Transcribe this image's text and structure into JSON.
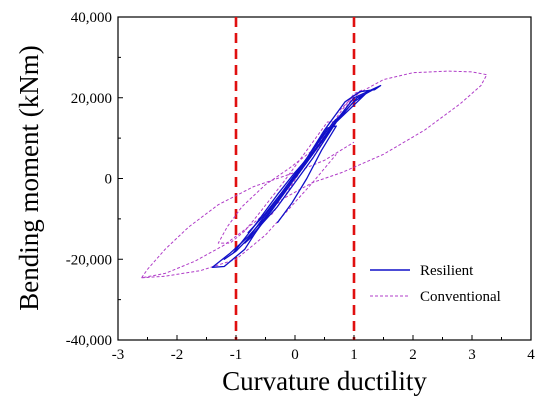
{
  "chart_data": {
    "type": "line",
    "title": "",
    "xlabel": "Curvature ductility",
    "ylabel": "Bending moment (kNm)",
    "xlim": [
      -3,
      4
    ],
    "ylim": [
      -40000,
      40000
    ],
    "x_ticks": [
      -3,
      -2,
      -1,
      0,
      1,
      2,
      3,
      4
    ],
    "x_tick_labels": [
      "-3",
      "-2",
      "-1",
      "0",
      "1",
      "2",
      "3",
      "4"
    ],
    "y_ticks": [
      -40000,
      -20000,
      0,
      20000,
      40000
    ],
    "y_tick_labels": [
      "-40,000",
      "-20,000",
      "0",
      "20,000",
      "40,000"
    ],
    "grid": false,
    "legend_position": "lower-right",
    "colors": {
      "resilient": "#1010c8",
      "conventional": "#b03cc8",
      "reference": "#e01010"
    },
    "reference_lines": [
      {
        "axis": "x",
        "value": -1,
        "style": "dashed"
      },
      {
        "axis": "x",
        "value": 1,
        "style": "dashed"
      }
    ],
    "series": [
      {
        "name": "Resilient",
        "style": "solid",
        "loops": [
          [
            [
              0,
              0
            ],
            [
              0.3,
              6000
            ],
            [
              0.6,
              12000
            ],
            [
              0.8,
              16000
            ],
            [
              0.65,
              14000
            ],
            [
              0.3,
              7000
            ],
            [
              0,
              1000
            ],
            [
              -0.3,
              -5000
            ],
            [
              -0.6,
              -11000
            ],
            [
              -0.85,
              -16000
            ],
            [
              -0.7,
              -14000
            ],
            [
              -0.4,
              -8000
            ],
            [
              -0.1,
              -2000
            ],
            [
              0.2,
              4500
            ],
            [
              0.5,
              10000
            ],
            [
              0.8,
              16000
            ]
          ],
          [
            [
              0.8,
              16000
            ],
            [
              1.0,
              19000
            ],
            [
              1.2,
              21000
            ],
            [
              1.05,
              20000
            ],
            [
              0.7,
              14000
            ],
            [
              0.3,
              5000
            ],
            [
              0,
              -1000
            ],
            [
              -0.3,
              -7000
            ],
            [
              -0.7,
              -13500
            ],
            [
              -1.0,
              -18000
            ],
            [
              -1.2,
              -20000
            ],
            [
              -1.05,
              -18500
            ],
            [
              -0.7,
              -12000
            ],
            [
              -0.3,
              -4000
            ],
            [
              0,
              1500
            ],
            [
              0.3,
              6500
            ],
            [
              0.7,
              14000
            ],
            [
              1.2,
              21000
            ]
          ],
          [
            [
              1.2,
              21000
            ],
            [
              1.45,
              23000
            ],
            [
              1.35,
              22000
            ],
            [
              1.1,
              21500
            ],
            [
              0.85,
              19000
            ],
            [
              0.5,
              12000
            ],
            [
              0.2,
              5000
            ],
            [
              -0.1,
              -1500
            ],
            [
              -0.4,
              -8000
            ],
            [
              -0.8,
              -14500
            ],
            [
              -1.1,
              -18500
            ],
            [
              -1.4,
              -22000
            ],
            [
              -1.2,
              -21800
            ],
            [
              -0.85,
              -17500
            ],
            [
              -0.5,
              -9500
            ],
            [
              -0.15,
              -2500
            ],
            [
              0.2,
              4000
            ],
            [
              0.6,
              12500
            ],
            [
              1.0,
              20000
            ],
            [
              1.45,
              23000
            ]
          ],
          [
            [
              -0.3,
              -11000
            ],
            [
              -0.05,
              -6000
            ],
            [
              0.2,
              0
            ],
            [
              0.45,
              7000
            ],
            [
              0.7,
              13000
            ],
            [
              0.55,
              12500
            ],
            [
              0.2,
              5000
            ],
            [
              -0.2,
              -3000
            ],
            [
              -0.55,
              -9500
            ],
            [
              -0.8,
              -13500
            ]
          ]
        ]
      },
      {
        "name": "Conventional",
        "style": "dashed",
        "loops": [
          [
            [
              -0.4,
              -9000
            ],
            [
              -0.2,
              -5000
            ],
            [
              0.1,
              2000
            ],
            [
              0.4,
              8000
            ],
            [
              0.7,
              14000
            ],
            [
              0.55,
              14000
            ],
            [
              0.15,
              6000
            ],
            [
              -0.2,
              -1000
            ],
            [
              -0.6,
              -8500
            ],
            [
              -0.85,
              -13000
            ]
          ],
          [
            [
              -0.85,
              -13000
            ],
            [
              -1.1,
              -16000
            ],
            [
              -1.3,
              -16000
            ],
            [
              -1.15,
              -12000
            ],
            [
              -0.9,
              -7000
            ],
            [
              -0.5,
              -1500
            ],
            [
              -0.1,
              2500
            ],
            [
              0.3,
              7000
            ],
            [
              0.7,
              14000
            ],
            [
              0.95,
              19500
            ],
            [
              1.15,
              22000
            ],
            [
              1.0,
              21000
            ],
            [
              0.7,
              15000
            ],
            [
              0.3,
              5000
            ]
          ],
          [
            [
              0.7,
              16000
            ],
            [
              1.0,
              20500
            ],
            [
              1.5,
              24500
            ],
            [
              2.0,
              26200
            ],
            [
              2.6,
              26600
            ],
            [
              3.0,
              26400
            ],
            [
              3.25,
              25700
            ],
            [
              3.15,
              23000
            ],
            [
              2.8,
              18500
            ],
            [
              2.2,
              12000
            ],
            [
              1.5,
              6000
            ],
            [
              0.8,
              1500
            ],
            [
              0.3,
              -1000
            ],
            [
              -0.2,
              -5000
            ],
            [
              -0.7,
              -11000
            ],
            [
              -1.2,
              -16500
            ],
            [
              -1.7,
              -20500
            ],
            [
              -2.2,
              -23500
            ],
            [
              -2.6,
              -24600
            ]
          ],
          [
            [
              -2.6,
              -24600
            ],
            [
              -2.2,
              -24200
            ],
            [
              -1.6,
              -22800
            ],
            [
              -1.0,
              -20000
            ],
            [
              -0.5,
              -14000
            ],
            [
              -0.1,
              -7500
            ],
            [
              0.3,
              -1000
            ],
            [
              0.7,
              6000
            ]
          ],
          [
            [
              -2.6,
              -24600
            ],
            [
              -2.5,
              -22500
            ],
            [
              -2.2,
              -17500
            ],
            [
              -1.8,
              -12000
            ],
            [
              -1.3,
              -6500
            ],
            [
              -0.7,
              -2000
            ],
            [
              0,
              1500
            ],
            [
              0.5,
              4500
            ],
            [
              1.0,
              9000
            ]
          ]
        ]
      }
    ]
  }
}
